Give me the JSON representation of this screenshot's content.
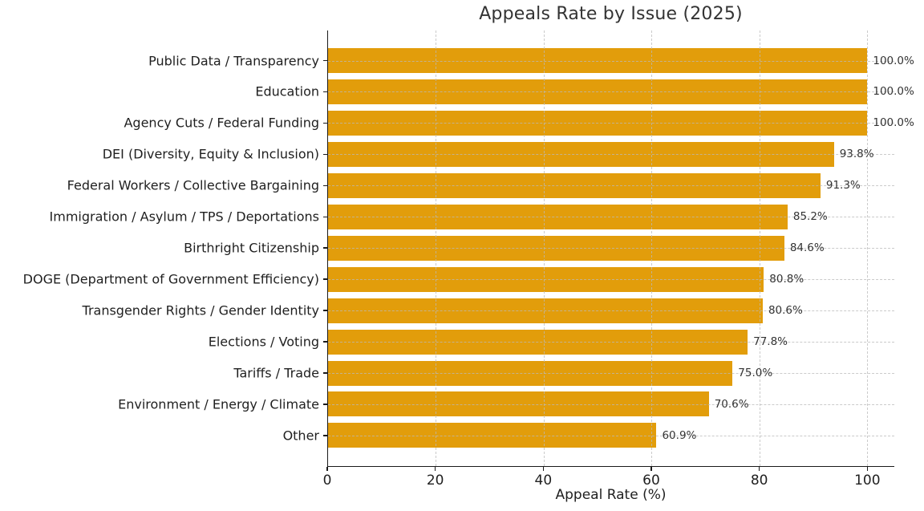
{
  "chart_data": {
    "type": "bar",
    "orientation": "horizontal",
    "title": "Appeals Rate by Issue (2025)",
    "xlabel": "Appeal Rate (%)",
    "categories": [
      "Public Data / Transparency",
      "Education",
      "Agency Cuts / Federal Funding",
      "DEI (Diversity, Equity & Inclusion)",
      "Federal Workers / Collective Bargaining",
      "Immigration / Asylum / TPS / Deportations",
      "Birthright Citizenship",
      "DOGE (Department of Government Efficiency)",
      "Transgender Rights / Gender Identity",
      "Elections / Voting",
      "Tariffs / Trade",
      "Environment / Energy / Climate",
      "Other"
    ],
    "values": [
      100.0,
      100.0,
      100.0,
      93.8,
      91.3,
      85.2,
      84.6,
      80.8,
      80.6,
      77.8,
      75.0,
      70.6,
      60.9
    ],
    "value_labels": [
      "100.0%",
      "100.0%",
      "100.0%",
      "93.8%",
      "91.3%",
      "85.2%",
      "84.6%",
      "80.8%",
      "80.6%",
      "77.8%",
      "75.0%",
      "70.6%",
      "60.9%"
    ],
    "xlim": [
      0,
      105
    ],
    "xticks": [
      0,
      20,
      40,
      60,
      80,
      100
    ],
    "xtick_labels": [
      "0",
      "20",
      "40",
      "60",
      "80",
      "100"
    ],
    "bar_color": "#E29D0B",
    "grid": "dashed",
    "grid_color": "#b9b9b9",
    "legend": "none"
  }
}
